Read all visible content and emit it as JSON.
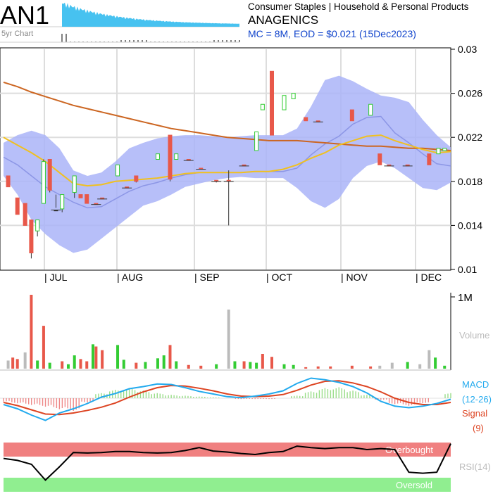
{
  "header": {
    "ticker": "AN1",
    "spark_caption": "5yr Chart",
    "sector": "Consumer Staples | Household & Personal Products",
    "company": "ANAGENICS",
    "summary": "MC = 8M, EOD = $0.021 (15Dec2023)"
  },
  "colors": {
    "bollinger_band": "#aab4f8",
    "bollinger_mid": "#8c96e6",
    "ma_long": "#cc6622",
    "ma_short": "#f0c020",
    "up": "#33cc33",
    "down": "#e8584a",
    "neutral": "#bbbbbb",
    "macd": "#22aaee",
    "signal": "#dd4422",
    "overbought": "#f08080",
    "oversold": "#90ee90",
    "spark": "#33bbee"
  },
  "chart_data": [
    {
      "type": "line",
      "panel": "price",
      "x_labels": [
        "| JUL",
        "| AUG",
        "| SEP",
        "| OCT",
        "| NOV",
        "| DEC"
      ],
      "y_ticks": [
        "0.03",
        "0.026",
        "0.022",
        "0.018",
        "0.014",
        "0.01"
      ],
      "ylim": [
        0.01,
        0.03
      ],
      "grid": true,
      "series": [
        {
          "role": "bollinger_upper",
          "values": [
            0.0215,
            0.0222,
            0.0226,
            0.0222,
            0.021,
            0.019,
            0.0185,
            0.0188,
            0.0198,
            0.021,
            0.0215,
            0.0219,
            0.0221,
            0.0222,
            0.0222,
            0.0221,
            0.022,
            0.0221,
            0.0222,
            0.0222,
            0.0222,
            0.0228,
            0.0248,
            0.0272,
            0.0276,
            0.0271,
            0.0264,
            0.0258,
            0.0256,
            0.0252,
            0.0236,
            0.0222,
            0.0211
          ]
        },
        {
          "role": "bollinger_lower",
          "values": [
            0.0185,
            0.0168,
            0.0145,
            0.0132,
            0.0122,
            0.0115,
            0.0118,
            0.0128,
            0.0138,
            0.0148,
            0.0158,
            0.0162,
            0.0168,
            0.0175,
            0.0178,
            0.0181,
            0.0183,
            0.0184,
            0.0183,
            0.0183,
            0.0183,
            0.0174,
            0.0162,
            0.0156,
            0.0164,
            0.0183,
            0.0194,
            0.0198,
            0.0192,
            0.0183,
            0.0174,
            0.0172,
            0.0179
          ]
        },
        {
          "role": "bollinger_mid",
          "values": [
            0.0202,
            0.0195,
            0.0185,
            0.0175,
            0.0168,
            0.0161,
            0.0156,
            0.0157,
            0.0164,
            0.0171,
            0.0176,
            0.0179,
            0.0183,
            0.0186,
            0.0188,
            0.0188,
            0.0188,
            0.0188,
            0.0189,
            0.0189,
            0.0189,
            0.0192,
            0.0204,
            0.0214,
            0.0221,
            0.0232,
            0.0238,
            0.0239,
            0.0224,
            0.0215,
            0.0205,
            0.0196,
            0.0194
          ]
        },
        {
          "role": "ma_long",
          "values": [
            0.027,
            0.0266,
            0.0261,
            0.0257,
            0.0253,
            0.0249,
            0.0246,
            0.0243,
            0.024,
            0.0237,
            0.0234,
            0.0231,
            0.0228,
            0.0226,
            0.0224,
            0.0222,
            0.022,
            0.0219,
            0.0218,
            0.0217,
            0.0217,
            0.0217,
            0.0216,
            0.0215,
            0.0214,
            0.0213,
            0.0212,
            0.0212,
            0.0211,
            0.021,
            0.021,
            0.0209,
            0.0208
          ]
        },
        {
          "role": "ma_short",
          "values": [
            0.022,
            0.0213,
            0.0206,
            0.0198,
            0.0188,
            0.0178,
            0.0176,
            0.0177,
            0.018,
            0.0181,
            0.0182,
            0.0183,
            0.0185,
            0.0187,
            0.0188,
            0.0188,
            0.0188,
            0.0188,
            0.0189,
            0.0189,
            0.0191,
            0.0195,
            0.0201,
            0.0206,
            0.0213,
            0.0217,
            0.0221,
            0.0222,
            0.0217,
            0.0213,
            0.0209,
            0.0206,
            0.0207
          ]
        }
      ],
      "candles": [
        [
          3,
          0.0185,
          0.0175,
          0.0185,
          0.0175
        ],
        [
          9,
          0.0165,
          0.015,
          0.0165,
          0.015
        ],
        [
          14,
          0.016,
          0.014,
          0.016,
          0.014
        ],
        [
          18,
          0.0145,
          0.011,
          0.0145,
          0.0115
        ],
        [
          22,
          0.0145,
          0.013,
          0.0135,
          0.0145
        ],
        [
          26,
          0.02,
          0.016,
          0.016,
          0.0198
        ],
        [
          30,
          0.02,
          0.017,
          0.02,
          0.0172
        ],
        [
          34,
          0.0168,
          0.0156,
          0.0154,
          0.0154
        ],
        [
          38,
          0.0168,
          0.0152,
          0.0155,
          0.0168
        ],
        [
          46,
          0.0185,
          0.0165,
          0.017,
          0.0185
        ],
        [
          50,
          0.0168,
          0.0165,
          0.0168,
          0.0165
        ],
        [
          54,
          0.0168,
          0.016,
          0.0168,
          0.016
        ],
        [
          60,
          0.016,
          0.0159,
          0.016,
          0.0159
        ],
        [
          64,
          0.0165,
          0.0164,
          0.0165,
          0.0164
        ],
        [
          74,
          0.0195,
          0.0185,
          0.0185,
          0.0195
        ],
        [
          80,
          0.0175,
          0.0174,
          0.0175,
          0.0174
        ],
        [
          86,
          0.0185,
          0.0179,
          0.0185,
          0.018
        ],
        [
          100,
          0.0205,
          0.02,
          0.02,
          0.0205
        ],
        [
          108,
          0.0222,
          0.018,
          0.0222,
          0.0182
        ],
        [
          112,
          0.0205,
          0.02,
          0.02,
          0.0205
        ],
        [
          120,
          0.02,
          0.0199,
          0.02,
          0.0199
        ],
        [
          128,
          0.0192,
          0.0191,
          0.0192,
          0.0191
        ],
        [
          138,
          0.0181,
          0.0179,
          0.0181,
          0.018
        ],
        [
          146,
          0.019,
          0.014,
          0.0181,
          0.018
        ],
        [
          156,
          0.0195,
          0.0194,
          0.0195,
          0.0194
        ],
        [
          164,
          0.0225,
          0.0208,
          0.0208,
          0.0225
        ],
        [
          168,
          0.025,
          0.0245,
          0.0245,
          0.025
        ],
        [
          174,
          0.028,
          0.0222,
          0.028,
          0.0222
        ],
        [
          182,
          0.0258,
          0.0245,
          0.0245,
          0.0258
        ],
        [
          188,
          0.026,
          0.0255,
          0.0255,
          0.026
        ],
        [
          196,
          0.0238,
          0.0235,
          0.0238,
          0.0235
        ],
        [
          204,
          0.0235,
          0.0234,
          0.0235,
          0.0234
        ],
        [
          226,
          0.0245,
          0.0235,
          0.0245,
          0.0235
        ],
        [
          238,
          0.025,
          0.024,
          0.024,
          0.025
        ],
        [
          244,
          0.0205,
          0.0195,
          0.0205,
          0.0195
        ],
        [
          250,
          0.0195,
          0.0194,
          0.0195,
          0.0194
        ],
        [
          262,
          0.0195,
          0.0194,
          0.0195,
          0.0194
        ],
        [
          276,
          0.0205,
          0.0195,
          0.0205,
          0.0195
        ],
        [
          282,
          0.021,
          0.0205,
          0.0205,
          0.021
        ],
        [
          286,
          0.021,
          0.0208,
          0.0208,
          0.021
        ]
      ],
      "notes": "candles: [day index, high, low, open, close]; x axis spans about 290 trading days"
    },
    {
      "type": "bar",
      "panel": "volume",
      "ylabel": "Volume",
      "y_ticks": [
        "1M"
      ],
      "ylim": [
        0,
        1000000
      ],
      "days": [
        3,
        6,
        9,
        14,
        18,
        22,
        26,
        30,
        38,
        42,
        46,
        50,
        54,
        58,
        60,
        64,
        74,
        78,
        86,
        92,
        100,
        104,
        108,
        112,
        120,
        128,
        138,
        146,
        150,
        156,
        160,
        164,
        168,
        174,
        182,
        188,
        196,
        204,
        212,
        226,
        238,
        244,
        252,
        262,
        270,
        276,
        280,
        286
      ],
      "values": [
        110000,
        150000,
        130000,
        220000,
        1050000,
        110000,
        580000,
        80000,
        100000,
        60000,
        180000,
        130000,
        100000,
        330000,
        300000,
        250000,
        320000,
        120000,
        80000,
        90000,
        140000,
        180000,
        320000,
        100000,
        50000,
        40000,
        60000,
        800000,
        100000,
        100000,
        90000,
        80000,
        200000,
        160000,
        60000,
        50000,
        20000,
        30000,
        30000,
        40000,
        30000,
        40000,
        80000,
        90000,
        60000,
        250000,
        150000,
        40000
      ],
      "kinds": [
        "neutral",
        "down",
        "down",
        "neutral",
        "down",
        "up",
        "down",
        "up",
        "down",
        "up",
        "up",
        "down",
        "down",
        "up",
        "down",
        "down",
        "up",
        "up",
        "down",
        "up",
        "up",
        "up",
        "down",
        "up",
        "down",
        "down",
        "up",
        "neutral",
        "up",
        "down",
        "up",
        "up",
        "down",
        "down",
        "up",
        "up",
        "down",
        "down",
        "down",
        "down",
        "down",
        "neutral",
        "neutral",
        "up",
        "neutral",
        "neutral",
        "up",
        "up"
      ]
    },
    {
      "type": "line",
      "panel": "macd",
      "legend_macd": [
        "MACD",
        "(12-26)"
      ],
      "legend_signal": [
        "Signal",
        "(9)"
      ],
      "histogram": [
        -0.4,
        -0.6,
        -0.8,
        -1.0,
        -1.3,
        -1.5,
        -0.5,
        0.6,
        1.0,
        1.2,
        0.9,
        0.6,
        0.4,
        0.3,
        0.2,
        0.1,
        0.0,
        -0.1,
        -0.1,
        -0.1,
        0.0,
        0.3,
        0.8,
        1.2,
        1.3,
        0.9,
        0.4,
        -0.2,
        -0.7,
        -0.9,
        -0.6,
        0.0,
        0.6
      ],
      "series": [
        {
          "role": "macd",
          "values": [
            -1.2,
            -2.0,
            -3.2,
            -4.2,
            -2.8,
            -2.0,
            -1.0,
            0.2,
            0.9,
            1.8,
            2.2,
            2.7,
            2.6,
            2.0,
            1.3,
            0.8,
            0.3,
            0.1,
            0.4,
            0.8,
            1.4,
            2.8,
            3.8,
            3.5,
            3.0,
            2.2,
            1.0,
            -0.6,
            -1.5,
            -1.8,
            -1.5,
            -1.0,
            -0.2
          ]
        },
        {
          "role": "signal",
          "values": [
            -0.8,
            -1.4,
            -2.2,
            -3.0,
            -3.1,
            -2.8,
            -2.3,
            -1.7,
            -0.9,
            0.2,
            1.2,
            2.0,
            2.4,
            2.3,
            1.9,
            1.4,
            0.8,
            0.4,
            0.3,
            0.4,
            0.7,
            1.5,
            2.5,
            3.2,
            3.3,
            2.9,
            2.2,
            1.2,
            0.0,
            -0.8,
            -1.2,
            -1.2,
            -0.8
          ]
        }
      ]
    },
    {
      "type": "line",
      "panel": "rsi",
      "ylabel": "RSI(14)",
      "overbought_label": "Overbought",
      "oversold_label": "Oversold",
      "ylim": [
        0,
        100
      ],
      "series": [
        {
          "role": "rsi",
          "values": [
            62,
            58,
            50,
            18,
            45,
            74,
            73,
            74,
            76,
            76,
            74,
            73,
            74,
            78,
            84,
            77,
            75,
            72,
            70,
            74,
            76,
            87,
            84,
            82,
            84,
            84,
            80,
            82,
            80,
            34,
            32,
            34,
            92
          ]
        }
      ]
    }
  ]
}
